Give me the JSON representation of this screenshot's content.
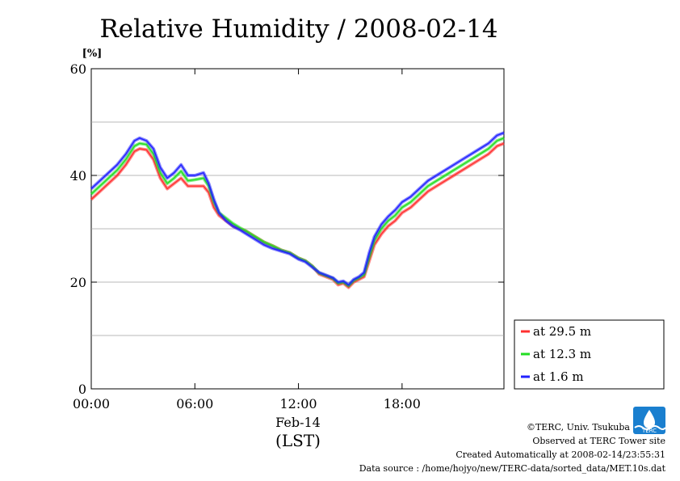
{
  "chart_data": {
    "type": "line",
    "title": "Relative Humidity / 2008-02-14",
    "unit": "[%]",
    "xlabel": "Feb-14",
    "xlabel_sub": "(LST)",
    "ylim": [
      0,
      60
    ],
    "xlim": [
      0,
      23.9
    ],
    "y_ticks": [
      0,
      20,
      40,
      60
    ],
    "y_tick_labels": [
      "0",
      "20",
      "40",
      "60"
    ],
    "x_ticks": [
      0,
      6,
      12,
      18
    ],
    "x_tick_labels": [
      "00:00",
      "06:00",
      "12:00",
      "18:00"
    ],
    "grid": true,
    "legend_position": "bottom-right outside",
    "series": [
      {
        "name": "at 29.5 m",
        "color": "#ff3030",
        "x": [
          0,
          0.5,
          1,
          1.5,
          2,
          2.5,
          2.8,
          3.2,
          3.6,
          4,
          4.4,
          4.8,
          5.2,
          5.6,
          6,
          6.5,
          6.8,
          7.1,
          7.4,
          7.8,
          8.2,
          8.6,
          9,
          9.5,
          10,
          10.5,
          11,
          11.5,
          12,
          12.4,
          12.8,
          13.2,
          13.6,
          14,
          14.3,
          14.6,
          14.9,
          15.2,
          15.5,
          15.8,
          16.1,
          16.4,
          16.8,
          17.2,
          17.6,
          18,
          18.5,
          19,
          19.5,
          20,
          20.5,
          21,
          21.5,
          22,
          22.5,
          23,
          23.5,
          23.9
        ],
        "y": [
          35.5,
          37,
          38.5,
          40,
          42,
          44.5,
          45,
          44.8,
          43,
          39.5,
          37.5,
          38.5,
          39.5,
          38,
          38,
          38,
          36.8,
          34,
          32.5,
          31.5,
          30.5,
          30,
          29.5,
          28.5,
          27.5,
          26.8,
          26,
          25.5,
          24.5,
          24,
          23,
          21.5,
          21,
          20.5,
          19.5,
          19.8,
          19,
          20,
          20.5,
          21,
          24,
          27,
          29,
          30.5,
          31.5,
          33,
          34,
          35.5,
          37,
          38,
          39,
          40,
          41,
          42,
          43,
          44,
          45.5,
          46
        ]
      },
      {
        "name": "at 12.3 m",
        "color": "#22dd22",
        "x": [
          0,
          0.5,
          1,
          1.5,
          2,
          2.5,
          2.8,
          3.2,
          3.6,
          4,
          4.4,
          4.8,
          5.2,
          5.6,
          6,
          6.5,
          6.8,
          7.1,
          7.4,
          7.8,
          8.2,
          8.6,
          9,
          9.5,
          10,
          10.5,
          11,
          11.5,
          12,
          12.4,
          12.8,
          13.2,
          13.6,
          14,
          14.3,
          14.6,
          14.9,
          15.2,
          15.5,
          15.8,
          16.1,
          16.4,
          16.8,
          17.2,
          17.6,
          18,
          18.5,
          19,
          19.5,
          20,
          20.5,
          21,
          21.5,
          22,
          22.5,
          23,
          23.5,
          23.9
        ],
        "y": [
          36.5,
          38,
          39.5,
          41,
          43,
          45.5,
          46,
          45.8,
          44,
          40.5,
          38.5,
          39.5,
          40.8,
          39,
          39.2,
          39.5,
          38,
          35,
          33,
          32,
          31,
          30.2,
          29.5,
          28.5,
          27.5,
          26.8,
          26,
          25.5,
          24.5,
          24,
          23,
          21.7,
          21.2,
          20.7,
          19.8,
          20,
          19.3,
          20.3,
          20.8,
          21.4,
          24.7,
          27.8,
          30,
          31.5,
          32.5,
          34,
          35,
          36.5,
          38,
          39,
          40,
          41,
          42,
          43,
          44,
          45,
          46.5,
          47
        ]
      },
      {
        "name": "at 1.6 m",
        "color": "#2222ff",
        "x": [
          0,
          0.5,
          1,
          1.5,
          2,
          2.5,
          2.8,
          3.2,
          3.6,
          4,
          4.4,
          4.8,
          5.2,
          5.6,
          6,
          6.5,
          6.8,
          7.1,
          7.4,
          7.8,
          8.2,
          8.6,
          9,
          9.5,
          10,
          10.5,
          11,
          11.5,
          12,
          12.4,
          12.8,
          13.2,
          13.6,
          14,
          14.3,
          14.6,
          14.9,
          15.2,
          15.5,
          15.8,
          16.1,
          16.4,
          16.8,
          17.2,
          17.6,
          18,
          18.5,
          19,
          19.5,
          20,
          20.5,
          21,
          21.5,
          22,
          22.5,
          23,
          23.5,
          23.9
        ],
        "y": [
          37.5,
          39,
          40.5,
          42,
          44,
          46.5,
          47,
          46.5,
          45,
          41.5,
          39.5,
          40.5,
          42,
          40,
          40,
          40.5,
          38.5,
          35.5,
          33,
          31.5,
          30.5,
          29.8,
          29,
          28,
          27,
          26.3,
          25.8,
          25.3,
          24.3,
          23.8,
          22.8,
          21.8,
          21.3,
          20.8,
          20,
          20.2,
          19.5,
          20.5,
          21,
          21.8,
          25.5,
          28.5,
          30.8,
          32.3,
          33.5,
          35,
          36,
          37.5,
          39,
          40,
          41,
          42,
          43,
          44,
          45,
          46,
          47.5,
          48
        ]
      }
    ]
  },
  "footer": {
    "copyright": "©TERC, Univ. Tsukuba",
    "observed": "Observed at TERC Tower site",
    "created": "Created Automatically at 2008-02-14/23:55:31",
    "source": "Data source : /home/hojyo/new/TERC-data/sorted_data/MET.10s.dat",
    "logo_text": "TERC"
  }
}
